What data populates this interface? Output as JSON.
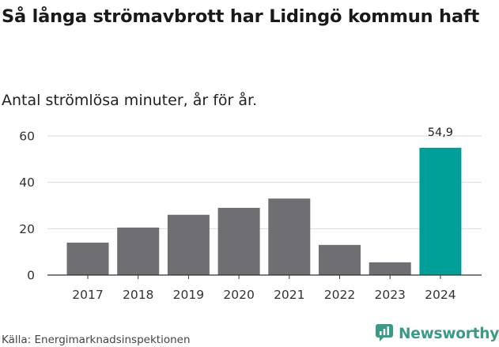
{
  "header": {
    "title": "Så långa strömavbrott har Lidingö kommun haft",
    "subtitle": "Antal strömlösa minuter, år för år."
  },
  "footer": {
    "source": "Källa: Energimarknadsinspektionen",
    "brand": "Newsworthy",
    "brand_icon": "newsworthy-logo-icon"
  },
  "colors": {
    "bar": "#6e6e73",
    "highlight": "#00a098",
    "grid": "#d9d9d9",
    "axis": "#333333",
    "brand": "#3a9a86"
  },
  "chart_data": {
    "type": "bar",
    "title": "Så långa strömavbrott har Lidingö kommun haft",
    "subtitle": "Antal strömlösa minuter, år för år.",
    "categories": [
      "2017",
      "2018",
      "2019",
      "2020",
      "2021",
      "2022",
      "2023",
      "2024"
    ],
    "values": [
      14,
      20.5,
      26,
      29,
      33,
      13,
      5.5,
      54.9
    ],
    "highlight_index": 7,
    "data_labels": {
      "7": "54,9"
    },
    "xlabel": "",
    "ylabel": "",
    "ylim": [
      0,
      60
    ],
    "yticks": [
      0,
      20,
      40,
      60
    ],
    "grid": true,
    "legend": "none"
  }
}
